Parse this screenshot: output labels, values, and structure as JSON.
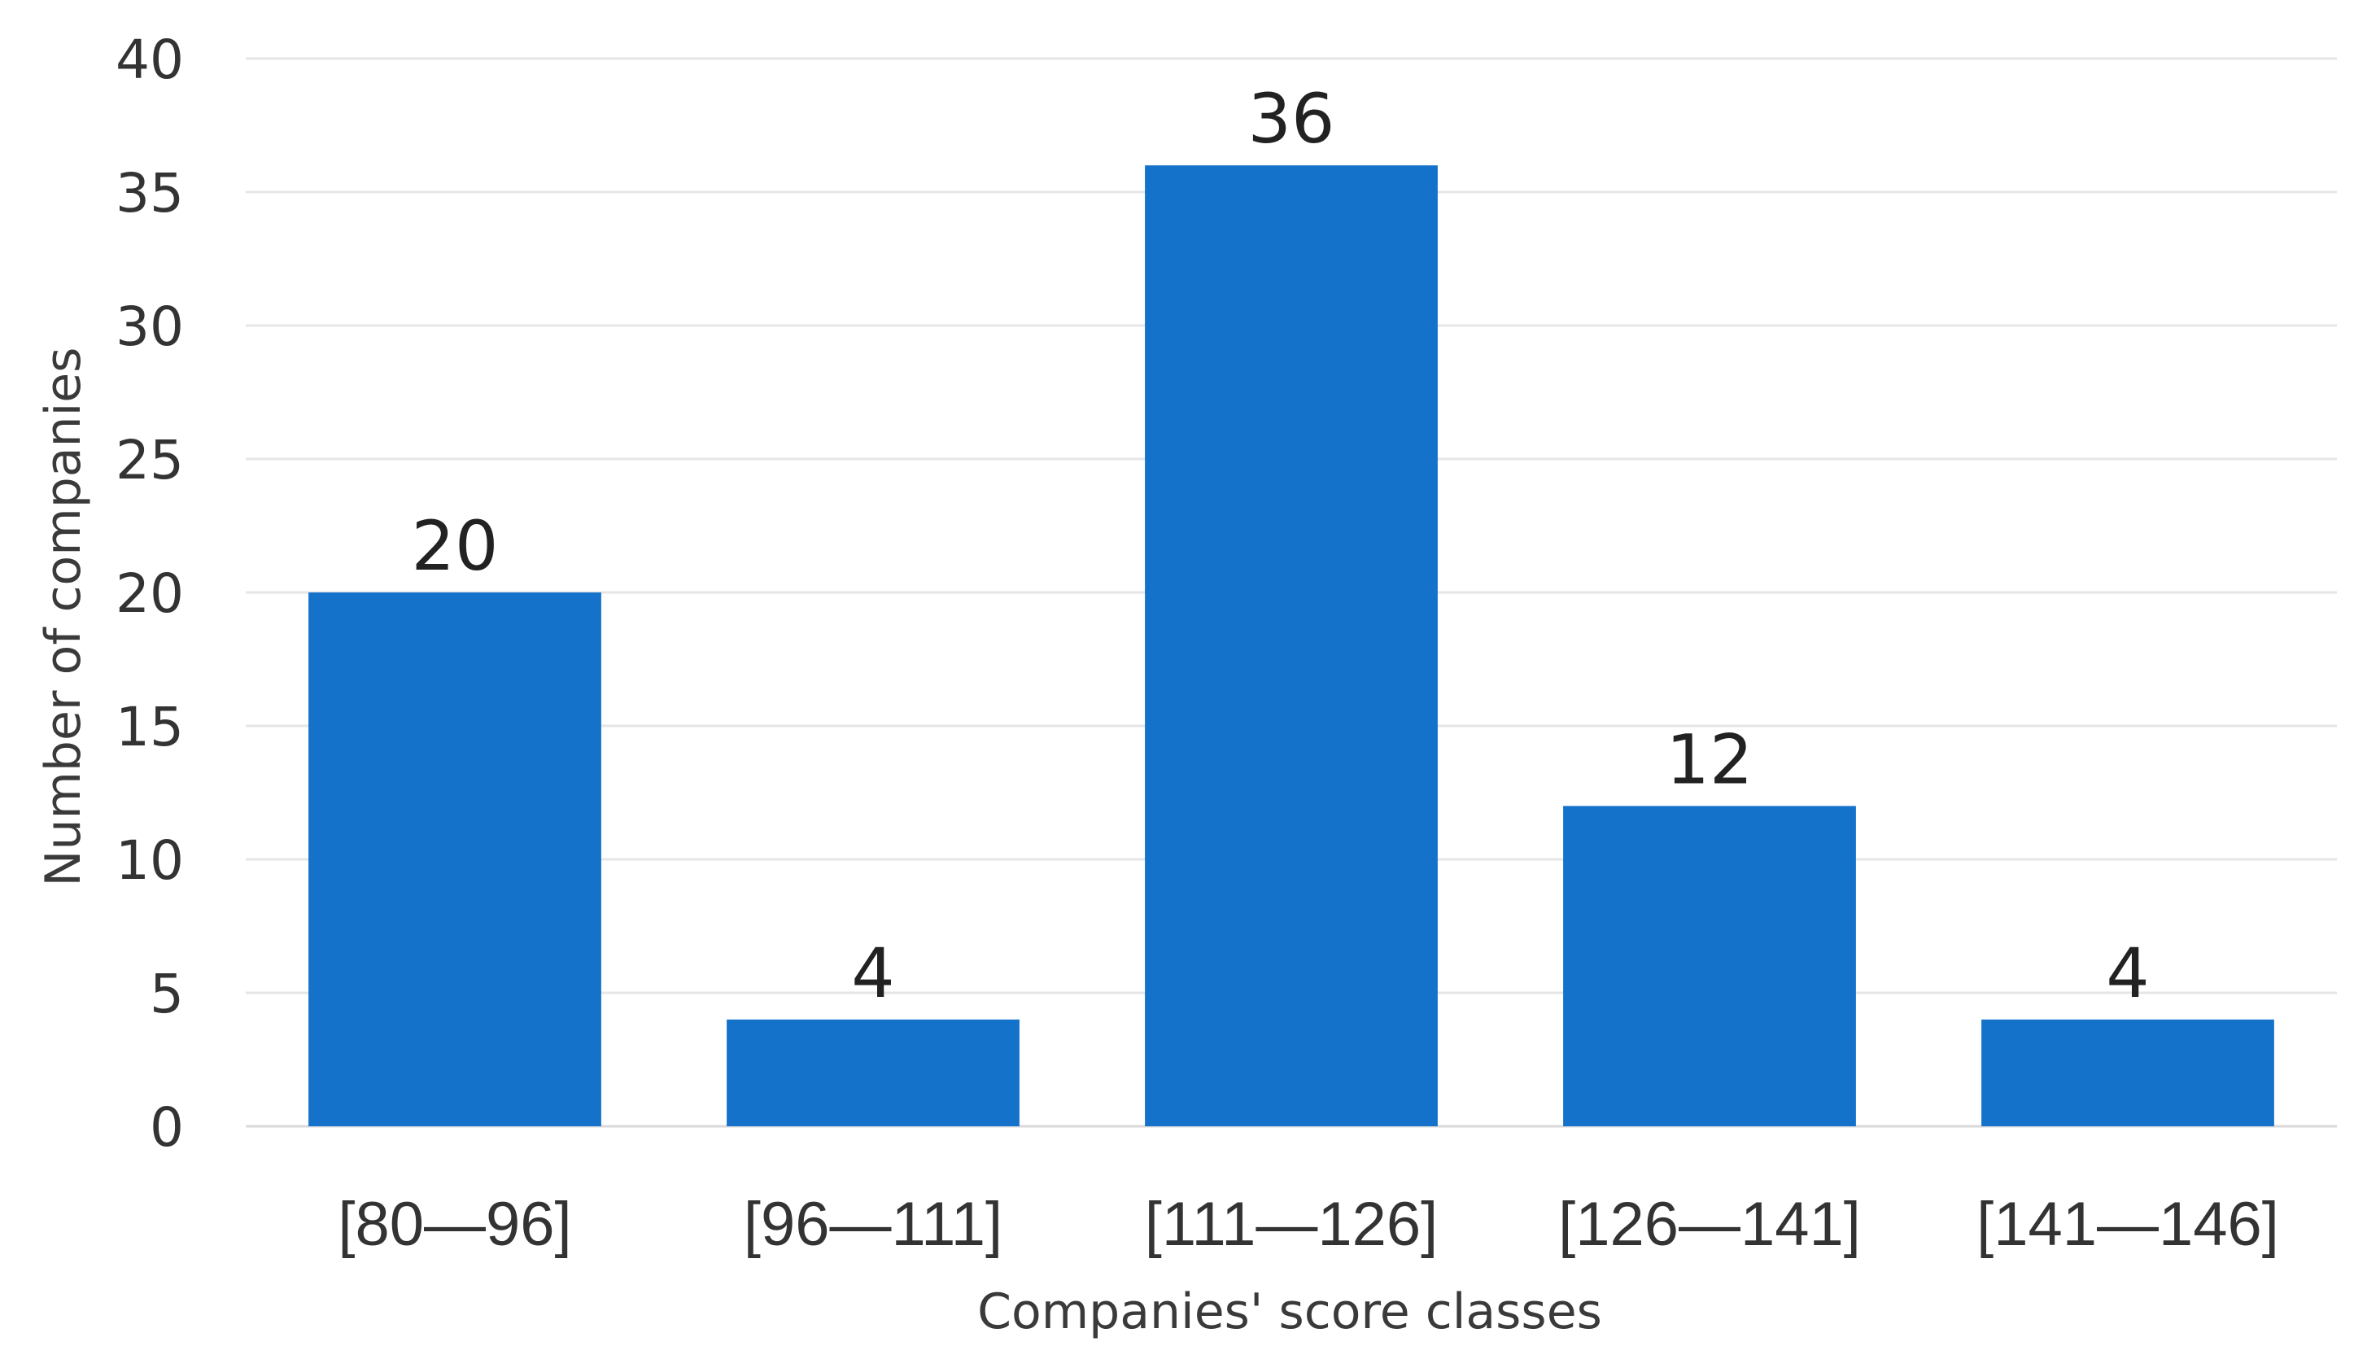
{
  "chart_data": {
    "type": "bar",
    "title": "",
    "xlabel": "Companies' score classes",
    "ylabel": "Number of companies",
    "categories": [
      "[80—96]",
      "[96—111]",
      "[111—126]",
      "[126—141]",
      "[141—146]"
    ],
    "values": [
      20,
      4,
      36,
      12,
      4
    ],
    "data_labels": [
      "20",
      "4",
      "36",
      "12",
      "4"
    ],
    "ylim": [
      0,
      40
    ],
    "yticks": [
      0,
      5,
      10,
      15,
      20,
      25,
      30,
      35,
      40
    ],
    "grid": true,
    "legend": "none",
    "colors": {
      "bar": "#1572CB",
      "grid": "#e6e6e6",
      "axis": "#d9d9d9"
    }
  }
}
